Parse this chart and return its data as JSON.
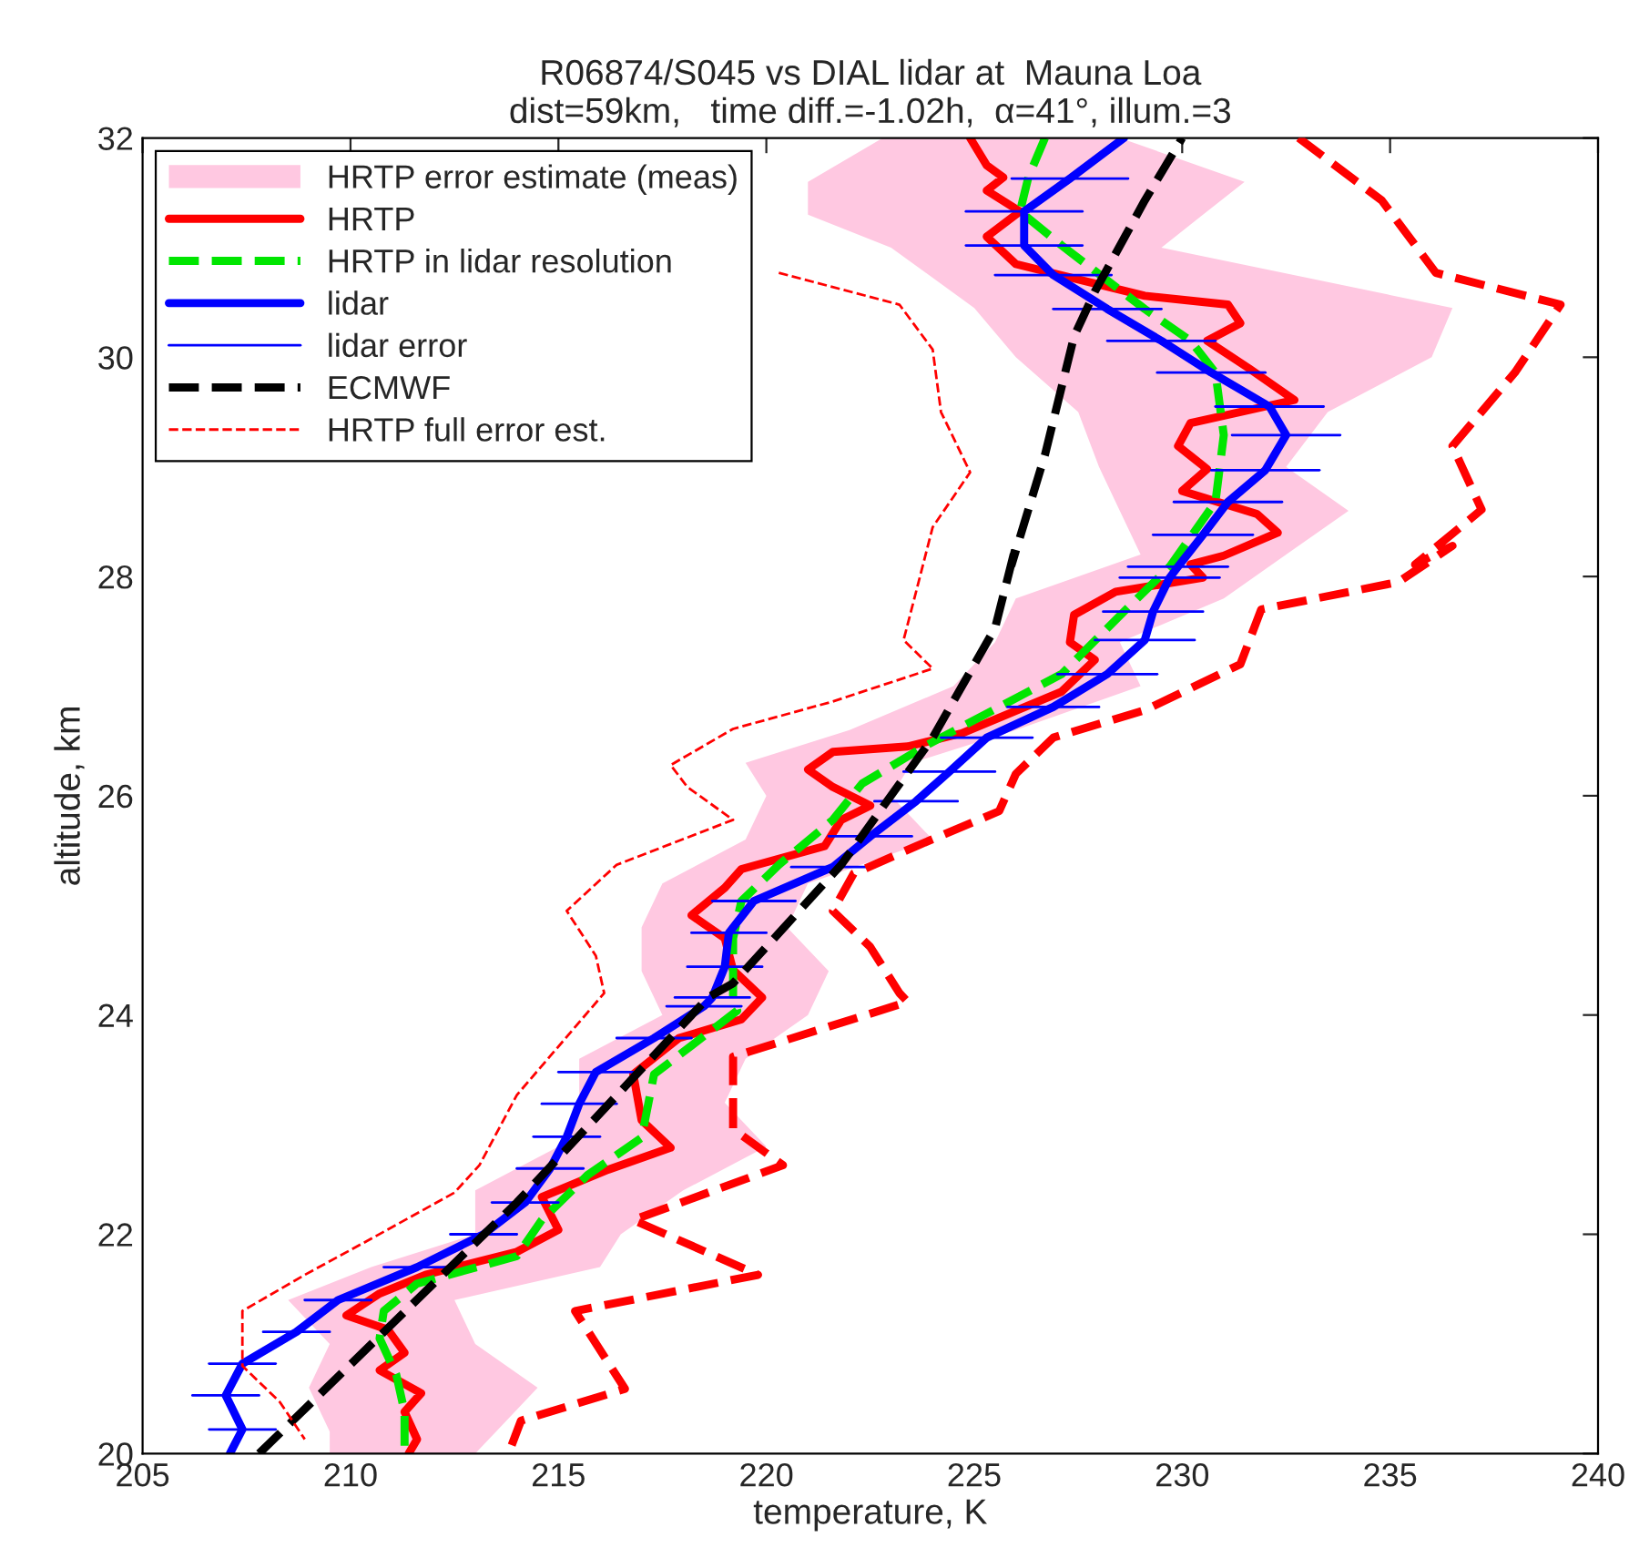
{
  "chart_data": {
    "type": "line",
    "title": "R06874/S045 vs DIAL lidar at  Mauna Loa\ndist=59km,   time diff.=-1.02h,  α=41°, illum.=3",
    "xlabel": "temperature, K",
    "ylabel": "altitude, km",
    "xlim": [
      205,
      240
    ],
    "xticks": [
      205,
      210,
      215,
      220,
      225,
      230,
      235,
      240
    ],
    "ylim": [
      20,
      32
    ],
    "yticks": [
      20,
      22,
      24,
      26,
      28,
      30,
      32
    ],
    "grid": false,
    "legend": "top left",
    "series": [
      {
        "name": "HRTP error estimate (meas)",
        "type": "area",
        "color": "#ffc8e1",
        "values": [
          32.0,
          31.6,
          31.3,
          31.0,
          30.45,
          30.0,
          29.5,
          29.0,
          28.6,
          28.2,
          27.8,
          27.4,
          27.0,
          26.6,
          26.3,
          26.0,
          25.6,
          25.2,
          24.8,
          24.4,
          24.0,
          23.6,
          23.2,
          22.8,
          22.4,
          22.0,
          21.7,
          21.4,
          21.0,
          20.6,
          20.2,
          20.0,
          20.0,
          20.2,
          20.6,
          21.0,
          21.4,
          21.7,
          22.0,
          22.4,
          22.8,
          23.2,
          23.6,
          24.0,
          24.4,
          24.8,
          25.2,
          25.6,
          26.0,
          26.3,
          26.6,
          27.0,
          27.4,
          27.8,
          28.2,
          28.6,
          29.0,
          29.5,
          30.0,
          30.45,
          31.0,
          31.3,
          31.6,
          32.0
        ],
        "x": [
          222.8,
          221.0,
          221.0,
          223.0,
          225.0,
          226.0,
          227.5,
          228.0,
          228.5,
          229.0,
          226.0,
          225.5,
          224.5,
          222.0,
          219.5,
          220.0,
          219.5,
          217.5,
          217.0,
          217.0,
          217.5,
          215.5,
          215.5,
          215.0,
          213.0,
          213.0,
          210.5,
          208.5,
          209.5,
          209.0,
          209.5,
          209.5,
          213.0,
          213.5,
          214.5,
          213.0,
          212.5,
          216.0,
          216.5,
          218.0,
          220.0,
          219.0,
          219.5,
          221.0,
          221.5,
          220.5,
          221.0,
          224.0,
          223.0,
          223.5,
          226.0,
          229.0,
          228.5,
          231.0,
          232.5,
          234.0,
          232.5,
          233.5,
          236.0,
          236.5,
          229.5,
          230.5,
          231.5,
          228.5
        ]
      },
      {
        "name": "HRTP",
        "color": "#ff0000",
        "line_style": "solid",
        "x": [
          224.9,
          225.3,
          225.7,
          225.3,
          226.1,
          225.3,
          226.0,
          229.1,
          231.1,
          231.4,
          230.6,
          231.6,
          232.7,
          230.2,
          229.9,
          230.6,
          230.0,
          231.8,
          232.3,
          231.0,
          230.2,
          230.5,
          228.4,
          227.4,
          227.3,
          227.9,
          227.1,
          224.7,
          223.4,
          221.6,
          221.0,
          221.6,
          222.5,
          221.8,
          221.4,
          219.4,
          219.0,
          218.2,
          219.0,
          219.2,
          219.9,
          219.4,
          217.9,
          216.8,
          217.0,
          217.7,
          216.2,
          214.6,
          215.0,
          214.0,
          211.8,
          210.7,
          209.9,
          210.9,
          211.3,
          210.7,
          211.7,
          211.3,
          211.6,
          211.4
        ],
        "values": [
          32.0,
          31.75,
          31.64,
          31.52,
          31.33,
          31.1,
          30.85,
          30.56,
          30.48,
          30.31,
          30.15,
          29.9,
          29.61,
          29.4,
          29.19,
          28.98,
          28.78,
          28.57,
          28.4,
          28.19,
          28.11,
          27.99,
          27.86,
          27.65,
          27.4,
          27.24,
          26.95,
          26.57,
          26.45,
          26.4,
          26.24,
          26.08,
          25.91,
          25.78,
          25.54,
          25.33,
          25.16,
          24.91,
          24.7,
          24.41,
          24.16,
          23.96,
          23.79,
          23.46,
          23.04,
          22.79,
          22.59,
          22.34,
          22.04,
          21.84,
          21.63,
          21.46,
          21.26,
          21.13,
          20.92,
          20.76,
          20.55,
          20.38,
          20.13,
          20.0
        ]
      },
      {
        "name": "HRTP in lidar resolution",
        "color": "#00e600",
        "line_style": "dashed",
        "x": [
          226.7,
          226.3,
          226.1,
          227.1,
          229.1,
          230.2,
          230.8,
          231.0,
          230.8,
          229.7,
          228.6,
          227.1,
          225.3,
          223.8,
          222.3,
          221.6,
          220.3,
          219.4,
          219.2,
          219.2,
          219.3,
          217.3,
          217.0,
          215.7,
          214.6,
          214.0,
          211.6,
          210.8,
          210.7,
          211.1,
          211.3,
          211.3
        ],
        "values": [
          32.0,
          31.64,
          31.33,
          31.02,
          30.44,
          30.15,
          29.86,
          29.29,
          28.68,
          28.09,
          27.68,
          27.11,
          26.75,
          26.45,
          26.11,
          25.78,
          25.37,
          25.04,
          24.7,
          24.16,
          24.04,
          23.46,
          22.88,
          22.54,
          22.13,
          21.8,
          21.55,
          21.3,
          21.05,
          20.72,
          20.38,
          20.0
        ]
      },
      {
        "name": "lidar",
        "color": "#0000ff",
        "line_style": "solid",
        "x": [
          228.6,
          227.3,
          226.2,
          226.2,
          226.9,
          228.2,
          229.5,
          230.7,
          232.1,
          232.5,
          232.0,
          231.1,
          230.5,
          229.9,
          229.7,
          229.3,
          229.1,
          228.2,
          226.9,
          225.3,
          224.4,
          223.6,
          222.5,
          221.6,
          219.7,
          219.1,
          219.0,
          218.7,
          218.5,
          217.3,
          215.9,
          215.5,
          215.2,
          214.8,
          214.2,
          213.2,
          211.6,
          209.7,
          208.7,
          207.4,
          207.0,
          207.4,
          207.1
        ],
        "values": [
          32.0,
          31.63,
          31.33,
          31.02,
          30.75,
          30.44,
          30.15,
          29.86,
          29.55,
          29.29,
          28.97,
          28.68,
          28.38,
          28.09,
          27.99,
          27.68,
          27.42,
          27.11,
          26.81,
          26.53,
          26.22,
          25.95,
          25.63,
          25.35,
          25.04,
          24.75,
          24.44,
          24.16,
          24.08,
          23.79,
          23.48,
          23.19,
          22.89,
          22.6,
          22.29,
          22.0,
          21.7,
          21.4,
          21.11,
          20.82,
          20.53,
          20.22,
          20.0
        ],
        "xerrors": [
          null,
          1.4,
          1.4,
          1.4,
          1.4,
          1.3,
          1.3,
          1.3,
          1.3,
          1.3,
          1.3,
          1.3,
          1.2,
          1.2,
          1.2,
          1.2,
          1.2,
          1.2,
          1.1,
          1.1,
          1.1,
          1.0,
          1.0,
          1.0,
          1.0,
          0.9,
          0.9,
          0.9,
          0.9,
          0.9,
          0.9,
          0.9,
          0.8,
          0.8,
          0.8,
          0.8,
          0.8,
          0.8,
          0.8,
          0.8,
          0.8,
          0.8,
          null
        ]
      },
      {
        "name": "lidar error",
        "type": "line",
        "color": "#0000ff"
      },
      {
        "name": "ECMWF",
        "color": "#000000",
        "line_style": "dashed",
        "x": [
          207.8,
          214.0,
          218.6,
          219.2,
          221.8,
          224.0,
          225.5,
          226.0,
          225.9,
          226.7,
          227.4,
          227.9,
          229.1,
          230.0
        ],
        "values": [
          20.0,
          22.29,
          24.16,
          24.29,
          25.37,
          26.53,
          27.53,
          28.28,
          28.11,
          29.11,
          30.19,
          30.6,
          31.43,
          32.0
        ]
      },
      {
        "name": "HRTP full error est.",
        "color": "#ff0000",
        "line_style": "dashed",
        "x": [
          220.3,
          223.2,
          224.0,
          224.2,
          224.9,
          224.0,
          223.6,
          223.3,
          224.0,
          221.6,
          219.2,
          217.7,
          218.1,
          219.2,
          216.4,
          215.2,
          215.9,
          216.1,
          214.0,
          213.1,
          212.5,
          210.5,
          208.9,
          207.4,
          207.4,
          208.3,
          208.9
        ],
        "values": [
          30.77,
          30.48,
          30.07,
          29.5,
          28.95,
          28.45,
          27.86,
          27.42,
          27.16,
          26.86,
          26.61,
          26.28,
          26.08,
          25.78,
          25.37,
          24.95,
          24.54,
          24.2,
          23.27,
          22.63,
          22.38,
          21.96,
          21.63,
          21.3,
          20.8,
          20.47,
          20.13
        ]
      },
      {
        "color": "#ff0000",
        "line_style": "dashed",
        "x": [
          232.8,
          234.8,
          236.1,
          239.1,
          238.0,
          236.5,
          237.2,
          235.6,
          236.5,
          235.2,
          231.9,
          231.4,
          229.1,
          226.9,
          226.0,
          225.6,
          223.6,
          222.1,
          221.6,
          222.5,
          223.2,
          223.4,
          219.2,
          219.2,
          220.4,
          216.8,
          219.8,
          215.4,
          216.6,
          214.1,
          213.8
        ],
        "values": [
          32.0,
          31.43,
          30.77,
          30.48,
          29.86,
          29.19,
          28.61,
          28.11,
          28.28,
          27.95,
          27.7,
          27.2,
          26.78,
          26.53,
          26.2,
          25.86,
          25.54,
          25.29,
          24.95,
          24.62,
          24.2,
          24.12,
          23.62,
          22.96,
          22.63,
          22.13,
          21.63,
          21.3,
          20.59,
          20.3,
          20.0
        ]
      }
    ]
  }
}
